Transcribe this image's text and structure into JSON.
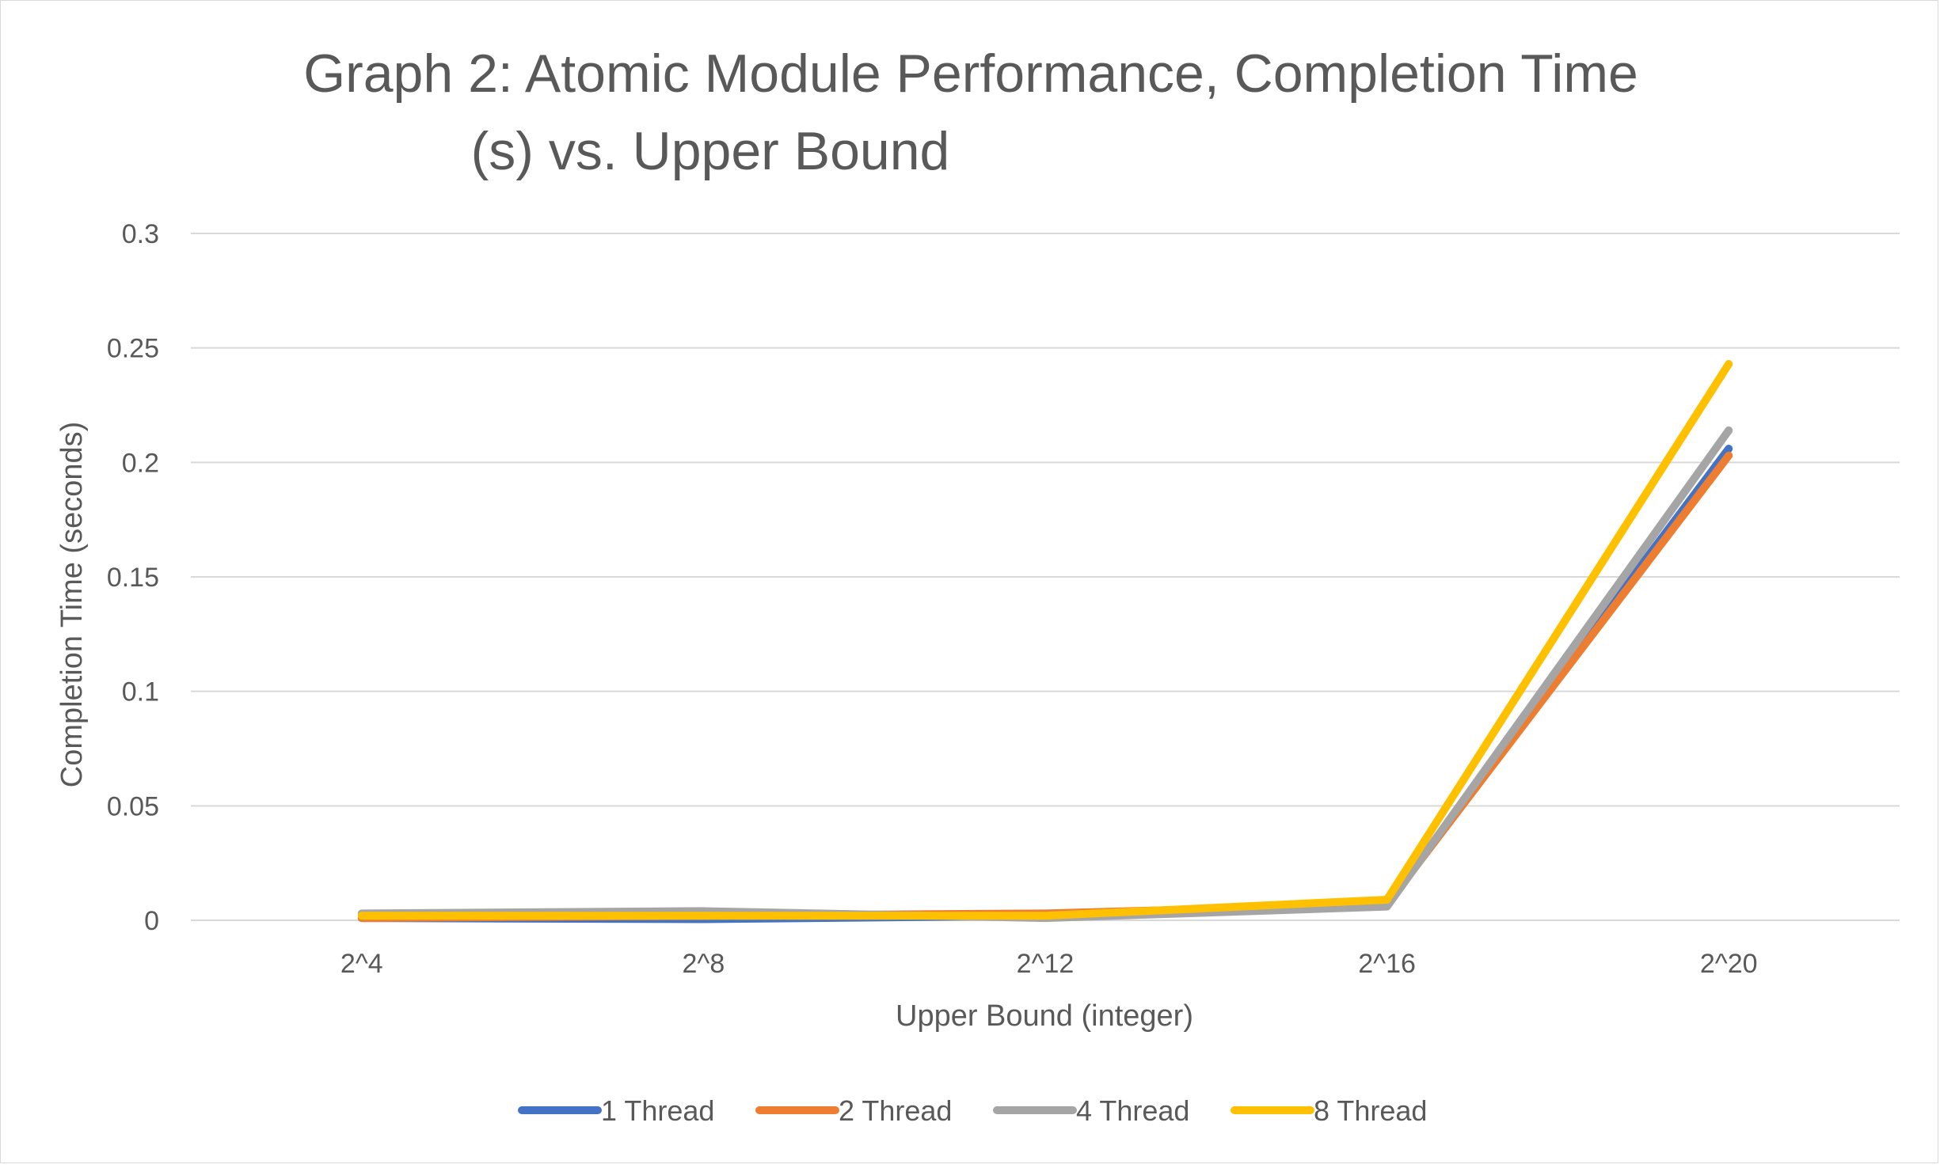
{
  "chart_data": {
    "type": "line",
    "title_lines": [
      "Graph 2: Atomic Module Performance, Completion Time",
      "(s) vs. Upper Bound"
    ],
    "xlabel": "Upper Bound (integer)",
    "ylabel": "Completion Time (seconds)",
    "categories": [
      "2^4",
      "2^8",
      "2^12",
      "2^16",
      "2^20"
    ],
    "ylim": [
      0,
      0.3
    ],
    "yticks": [
      0,
      0.05,
      0.1,
      0.15,
      0.2,
      0.25,
      0.3
    ],
    "ytick_labels": [
      "0",
      "0.05",
      "0.1",
      "0.15",
      "0.2",
      "0.25",
      "0.3"
    ],
    "grid": true,
    "legend_position": "bottom",
    "series": [
      {
        "name": "1 Thread",
        "color": "#4472C4",
        "values": [
          0.001,
          0.0005,
          0.002,
          0.007,
          0.206
        ]
      },
      {
        "name": "2 Thread",
        "color": "#ED7D31",
        "values": [
          0.001,
          0.002,
          0.003,
          0.007,
          0.203
        ]
      },
      {
        "name": "4 Thread",
        "color": "#A5A5A5",
        "values": [
          0.003,
          0.004,
          0.001,
          0.006,
          0.214
        ]
      },
      {
        "name": "8 Thread",
        "color": "#FFC000",
        "values": [
          0.002,
          0.002,
          0.002,
          0.009,
          0.243
        ]
      }
    ]
  }
}
